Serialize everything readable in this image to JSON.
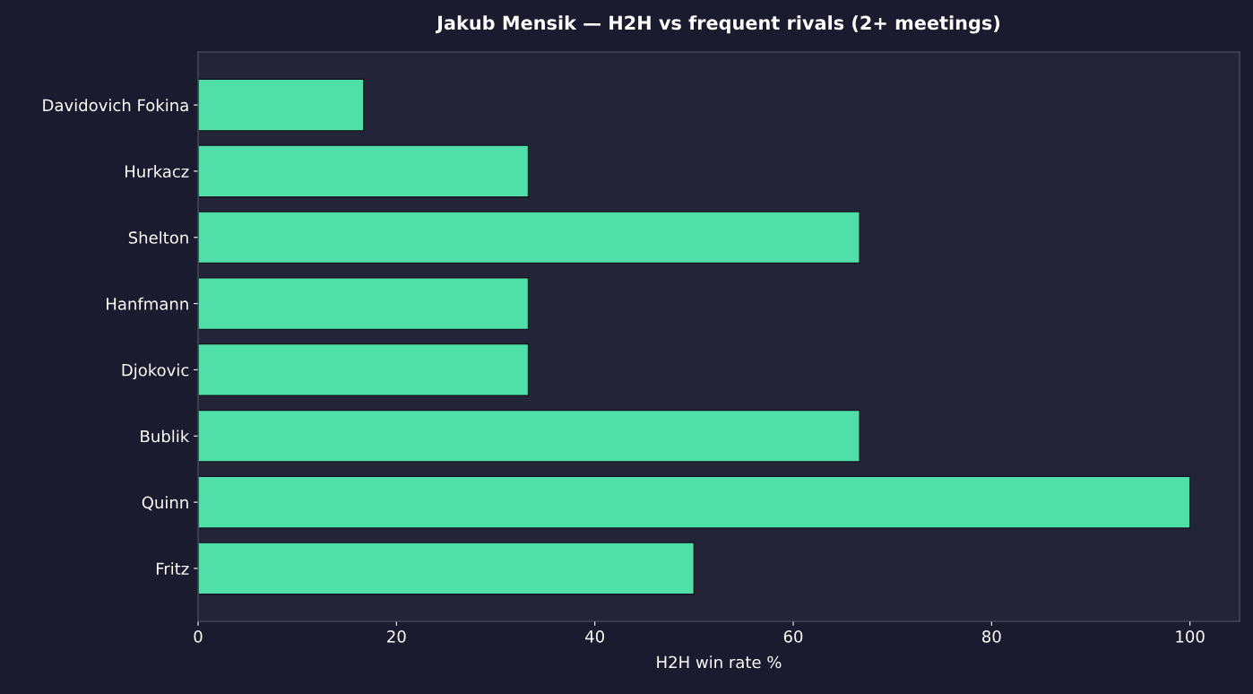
{
  "chart_data": {
    "type": "bar",
    "orientation": "horizontal",
    "title": "Jakub Mensik — H2H vs frequent rivals (2+ meetings)",
    "xlabel": "H2H win rate %",
    "categories": [
      "Davidovich Fokina",
      "Hurkacz",
      "Shelton",
      "Hanfmann",
      "Djokovic",
      "Bublik",
      "Quinn",
      "Fritz"
    ],
    "values": [
      16.7,
      33.3,
      66.7,
      33.3,
      33.3,
      66.7,
      100,
      50
    ],
    "color": "#50dfa8",
    "xlim": [
      0,
      105
    ],
    "xticks": [
      0,
      20,
      40,
      60,
      80,
      100
    ],
    "grid": false,
    "legend": false
  }
}
